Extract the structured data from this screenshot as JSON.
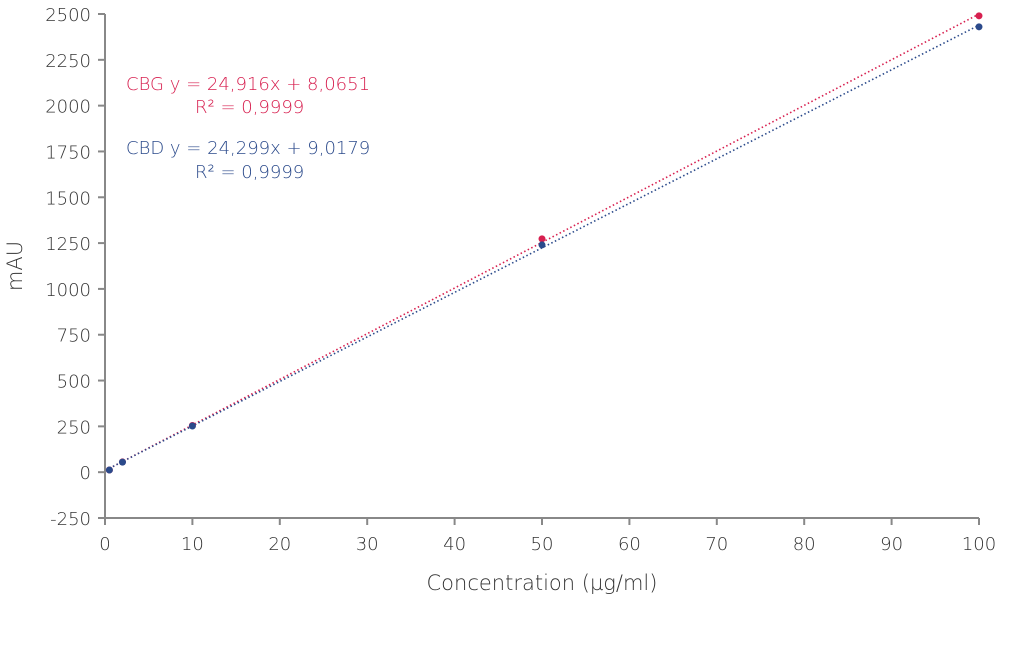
{
  "chart_data": {
    "type": "scatter",
    "xlabel": "Concentration (µg/ml)",
    "ylabel": "mAU",
    "xlim": [
      0,
      100
    ],
    "ylim": [
      -250,
      2500
    ],
    "xticks": [
      "0",
      "10",
      "20",
      "30",
      "40",
      "50",
      "60",
      "70",
      "80",
      "90",
      "100"
    ],
    "yticks": [
      "-250",
      "0",
      "250",
      "500",
      "750",
      "1000",
      "1250",
      "1500",
      "1750",
      "2000",
      "2250",
      "2500"
    ],
    "grid": false,
    "series": [
      {
        "name": "CBG",
        "color": "#d71f4f",
        "x": [
          0.5,
          2,
          10,
          50,
          100
        ],
        "y": [
          12,
          56,
          255,
          1273,
          2490
        ],
        "trendline": {
          "slope": 24.916,
          "intercept": 8.0651,
          "style": "dotted"
        },
        "equation": "CBG y = 24,916x + 8,0651",
        "r2": "R² = 0,9999"
      },
      {
        "name": "CBD",
        "color": "#2b4a8b",
        "x": [
          0.5,
          2,
          10,
          50,
          100
        ],
        "y": [
          12,
          55,
          252,
          1240,
          2430
        ],
        "trendline": {
          "slope": 24.299,
          "intercept": 9.0179,
          "style": "dotted"
        },
        "equation": "CBD y = 24,299x + 9,0179",
        "r2": "R² = 0,9999"
      }
    ]
  }
}
